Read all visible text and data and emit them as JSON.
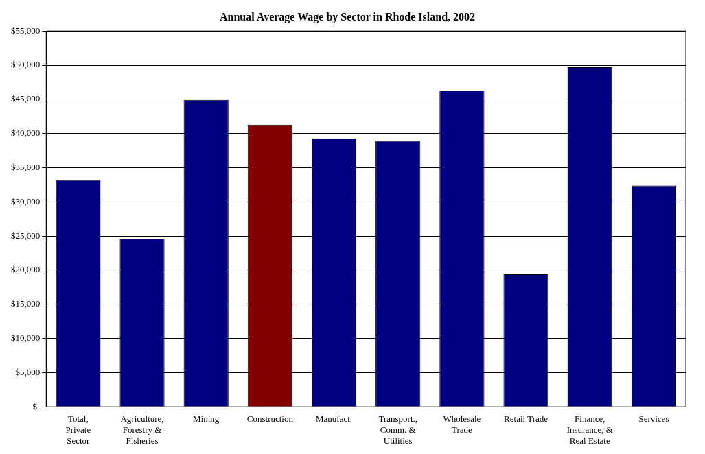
{
  "chart_data": {
    "type": "bar",
    "title": "Annual Average Wage by Sector in Rhode Island, 2002",
    "categories": [
      "Total, Private Sector",
      "Agriculture, Forestry & Fisheries",
      "Mining",
      "Construction",
      "Manufact.",
      "Transport., Comm. & Utilities",
      "Wholesale Trade",
      "Retail Trade",
      "Finance, Insurance, & Real Estate",
      "Services"
    ],
    "values": [
      33200,
      24600,
      44900,
      41300,
      39300,
      38900,
      46300,
      19400,
      49700,
      32400
    ],
    "colors": [
      "#000080",
      "#000080",
      "#000080",
      "#800000",
      "#000080",
      "#000080",
      "#000080",
      "#000080",
      "#000080",
      "#000080"
    ],
    "ylim": [
      0,
      55000
    ],
    "yticks": [
      {
        "value": 0,
        "label": "$-"
      },
      {
        "value": 5000,
        "label": "$5,000"
      },
      {
        "value": 10000,
        "label": "$10,000"
      },
      {
        "value": 15000,
        "label": "$15,000"
      },
      {
        "value": 20000,
        "label": "$20,000"
      },
      {
        "value": 25000,
        "label": "$25,000"
      },
      {
        "value": 30000,
        "label": "$30,000"
      },
      {
        "value": 35000,
        "label": "$35,000"
      },
      {
        "value": 40000,
        "label": "$40,000"
      },
      {
        "value": 45000,
        "label": "$45,000"
      },
      {
        "value": 50000,
        "label": "$50,000"
      },
      {
        "value": 55000,
        "label": "$55,000"
      }
    ],
    "grid": "y"
  }
}
